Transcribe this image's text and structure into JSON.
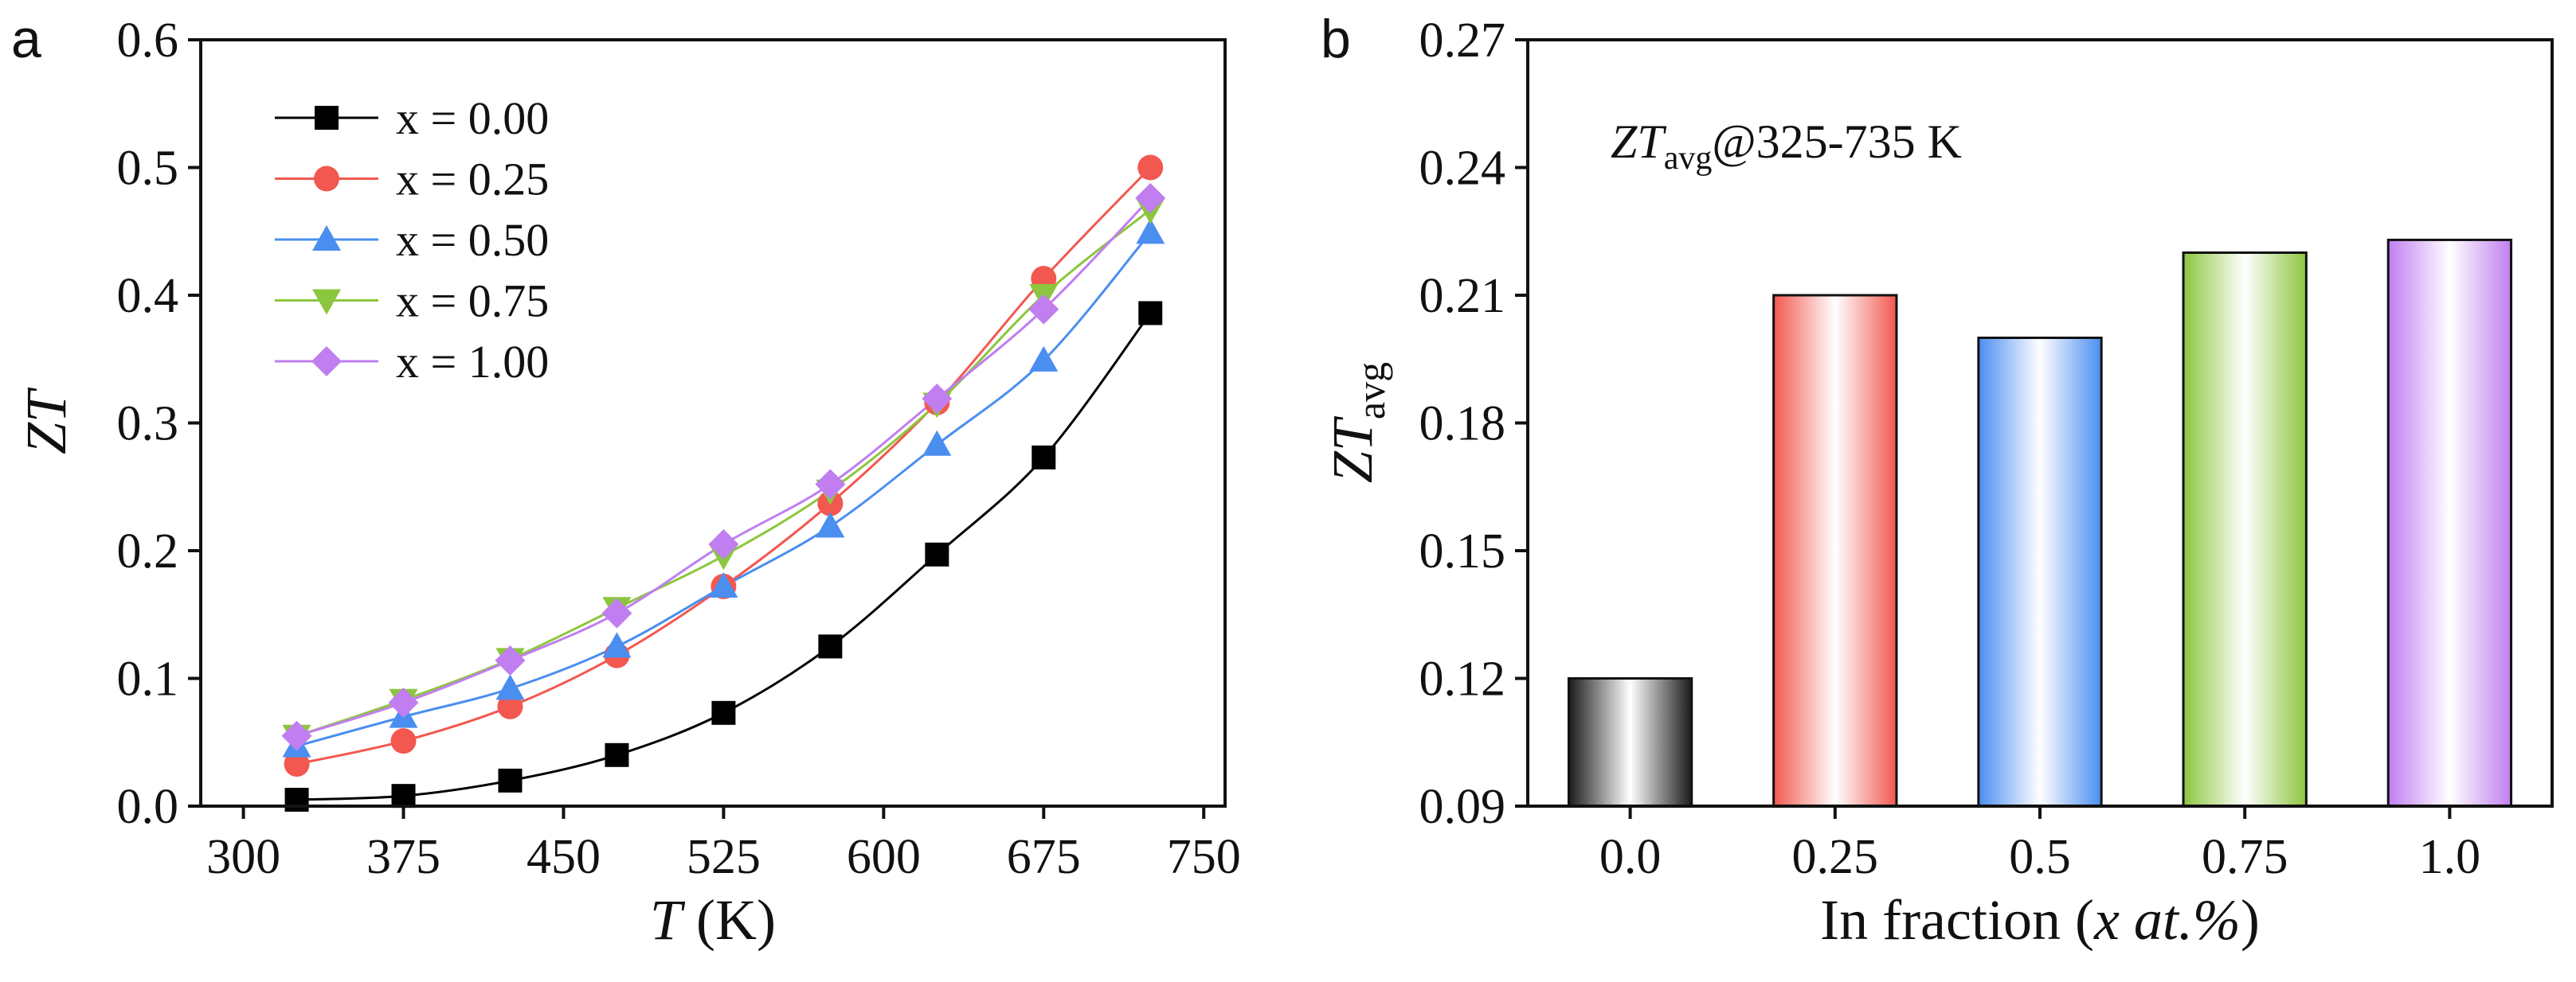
{
  "panels": {
    "a": {
      "letter": "a"
    },
    "b": {
      "letter": "b"
    }
  },
  "chart_data": [
    {
      "type": "line",
      "title": "",
      "xlabel": "T (K)",
      "xlabel_italic": "T",
      "xlabel_rest": " (K)",
      "ylabel": "ZT",
      "xlim": [
        280,
        760
      ],
      "ylim": [
        0.0,
        0.6
      ],
      "xticks": [
        300,
        375,
        450,
        525,
        600,
        675,
        750
      ],
      "yticks": [
        0.0,
        0.1,
        0.2,
        0.3,
        0.4,
        0.5,
        0.6
      ],
      "xtick_labels": [
        "300",
        "375",
        "450",
        "525",
        "600",
        "675",
        "750"
      ],
      "ytick_labels": [
        "0.0",
        "0.1",
        "0.2",
        "0.3",
        "0.4",
        "0.5",
        "0.6"
      ],
      "legend_position": "top-left",
      "x": [
        325,
        375,
        425,
        475,
        525,
        575,
        625,
        675,
        725
      ],
      "series": [
        {
          "name": "x = 0.00",
          "marker": "square",
          "color": "#000000",
          "values": [
            0.005,
            0.008,
            0.02,
            0.04,
            0.073,
            0.125,
            0.197,
            0.273,
            0.386
          ]
        },
        {
          "name": "x = 0.25",
          "marker": "circle",
          "color": "#f2584f",
          "values": [
            0.033,
            0.051,
            0.078,
            0.118,
            0.172,
            0.237,
            0.316,
            0.413,
            0.5
          ]
        },
        {
          "name": "x = 0.50",
          "marker": "triangle-up",
          "color": "#4a8ef0",
          "values": [
            0.047,
            0.07,
            0.092,
            0.125,
            0.172,
            0.219,
            0.283,
            0.349,
            0.449
          ]
        },
        {
          "name": "x = 0.75",
          "marker": "triangle-down",
          "color": "#8cc63e",
          "values": [
            0.055,
            0.083,
            0.115,
            0.155,
            0.196,
            0.247,
            0.315,
            0.4,
            0.467
          ]
        },
        {
          "name": "x = 1.00",
          "marker": "diamond",
          "color": "#c07ef0",
          "values": [
            0.055,
            0.081,
            0.114,
            0.151,
            0.205,
            0.252,
            0.319,
            0.389,
            0.476
          ]
        }
      ]
    },
    {
      "type": "bar",
      "title": "",
      "annotation": "ZTavg@325-735 K",
      "annotation_parts": {
        "italic": "ZT",
        "sub": "avg",
        "rest": "@325-735 K"
      },
      "xlabel": "In fraction (x at.%)",
      "xlabel_parts": {
        "before": "In fraction (",
        "italic": "x at.%",
        "after": ")"
      },
      "ylabel": "ZTavg",
      "ylabel_parts": {
        "italic": "ZT",
        "sub": "avg"
      },
      "ylim": [
        0.09,
        0.27
      ],
      "yticks": [
        0.09,
        0.12,
        0.15,
        0.18,
        0.21,
        0.24,
        0.27
      ],
      "ytick_labels": [
        "0.09",
        "0.12",
        "0.15",
        "0.18",
        "0.21",
        "0.24",
        "0.27"
      ],
      "categories": [
        "0.0",
        "0.25",
        "0.5",
        "0.75",
        "1.0"
      ],
      "values": [
        0.12,
        0.21,
        0.2,
        0.22,
        0.223
      ],
      "colors": [
        "#1a1a1a",
        "#f2584f",
        "#4a8ef0",
        "#8cc63e",
        "#c07ef0"
      ]
    }
  ]
}
